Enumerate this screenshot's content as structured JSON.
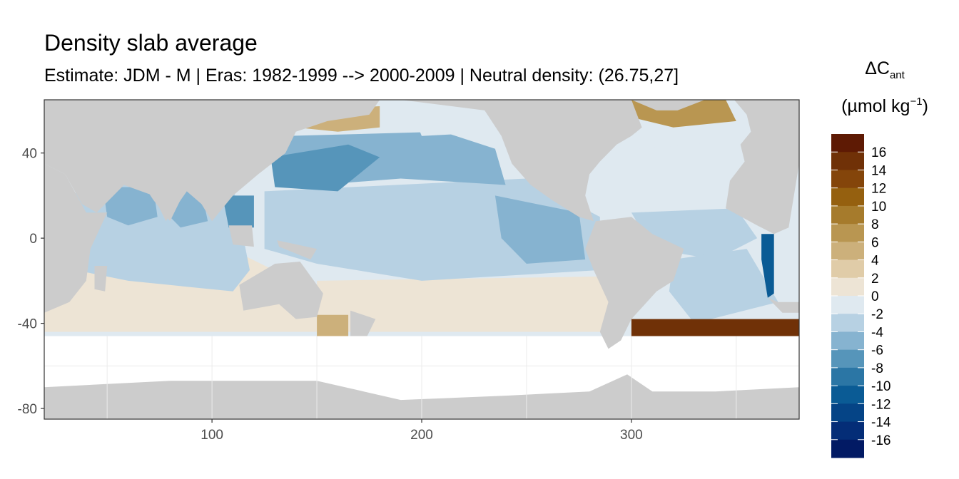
{
  "chart_data": {
    "type": "heatmap",
    "title": "Density slab average",
    "subtitle": "Estimate: JDM - M | Eras: 1982-1999 --> 2000-2009 | Neutral density: (26.75,27]",
    "legend": {
      "title_main": "ΔC",
      "title_sub": "ant",
      "unit_prefix": "(µmol kg",
      "unit_sup": "−1",
      "unit_suffix": ")",
      "position": "right",
      "breaks": [
        16,
        14,
        12,
        10,
        8,
        6,
        4,
        2,
        0,
        -2,
        -4,
        -6,
        -8,
        -10,
        -12,
        -14,
        -16
      ],
      "bins": [
        {
          "range": [
            16,
            18
          ],
          "color": "#5e1a04"
        },
        {
          "range": [
            14,
            16
          ],
          "color": "#703107"
        },
        {
          "range": [
            12,
            14
          ],
          "color": "#84450a"
        },
        {
          "range": [
            10,
            12
          ],
          "color": "#95600f"
        },
        {
          "range": [
            8,
            10
          ],
          "color": "#a67b2c"
        },
        {
          "range": [
            6,
            8
          ],
          "color": "#b99651"
        },
        {
          "range": [
            4,
            6
          ],
          "color": "#ccb07b"
        },
        {
          "range": [
            2,
            4
          ],
          "color": "#e0cca8"
        },
        {
          "range": [
            0,
            2
          ],
          "color": "#ede4d5"
        },
        {
          "range": [
            -2,
            0
          ],
          "color": "#dfe9f0"
        },
        {
          "range": [
            -4,
            -2
          ],
          "color": "#b7d1e3"
        },
        {
          "range": [
            -6,
            -4
          ],
          "color": "#86b3d0"
        },
        {
          "range": [
            -8,
            -6
          ],
          "color": "#5695ba"
        },
        {
          "range": [
            -10,
            -8
          ],
          "color": "#2b76a5"
        },
        {
          "range": [
            -12,
            -10
          ],
          "color": "#0a5b95"
        },
        {
          "range": [
            -14,
            -12
          ],
          "color": "#054486"
        },
        {
          "range": [
            -16,
            -14
          ],
          "color": "#042d77"
        },
        {
          "range": [
            -18,
            -16
          ],
          "color": "#021a64"
        }
      ]
    },
    "x": {
      "ticks": [
        100,
        200,
        300
      ],
      "range": [
        20,
        380
      ]
    },
    "y": {
      "ticks": [
        40,
        0,
        -40,
        -80
      ],
      "range": [
        -85,
        65
      ]
    },
    "grid": true,
    "colors": {
      "land": "#cccccc",
      "background": "#ffffff",
      "grid": "#ebebeb",
      "panel_border": "#333333"
    },
    "fields": [
      {
        "region": "north-pacific subpolar gyre",
        "value": -6
      },
      {
        "region": "north-pacific south of Japan",
        "value": -7
      },
      {
        "region": "south china sea",
        "value": -7
      },
      {
        "region": "equatorial pacific",
        "value": -4
      },
      {
        "region": "eastern equatorial pacific",
        "value": -5
      },
      {
        "region": "gulf of alaska",
        "value": -2
      },
      {
        "region": "sea of okhotsk",
        "value": 5
      },
      {
        "region": "indian ocean",
        "value": -4
      },
      {
        "region": "arabian sea",
        "value": -6
      },
      {
        "region": "bay of bengal",
        "value": -5
      },
      {
        "region": "south subtropical pacific",
        "value": 1
      },
      {
        "region": "south subtropical indian",
        "value": 1
      },
      {
        "region": "north atlantic subpolar",
        "value": 7
      },
      {
        "region": "north atlantic subtropical",
        "value": -2
      },
      {
        "region": "tropical atlantic",
        "value": -4
      },
      {
        "region": "west african coast",
        "value": -11
      },
      {
        "region": "brazil basin",
        "value": -3
      },
      {
        "region": "south atlantic subantarctic",
        "value": 14
      },
      {
        "region": "southern ocean band",
        "value": 2
      },
      {
        "region": "tasman sea",
        "value": 5
      }
    ]
  }
}
